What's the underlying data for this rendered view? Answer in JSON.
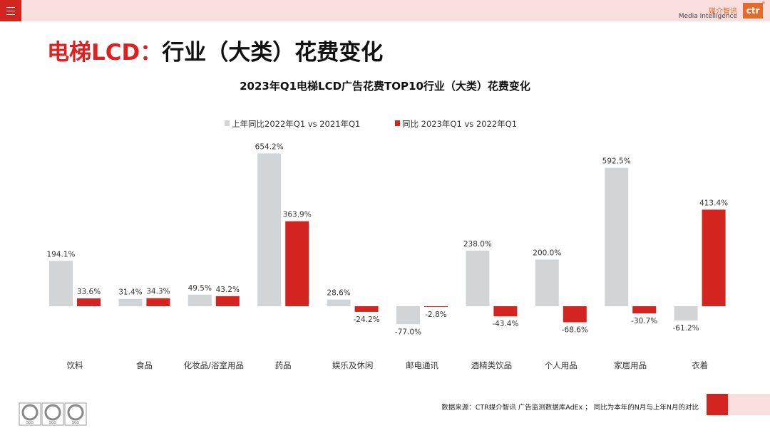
{
  "header": {
    "logo_cn": "媒介智讯",
    "logo_en": "Media Intelligence",
    "logo_mark": "ctr",
    "logo_reg": "®"
  },
  "page_title": {
    "part1": "电梯LCD：",
    "part2": "行业（大类）花费变化"
  },
  "colors": {
    "accent": "#d3241f",
    "grey_bar": "#d1d5d8",
    "red_bar": "#d3241f",
    "band": "#f8dedd"
  },
  "chart_data": {
    "type": "bar",
    "title": "2023年Q1电梯LCD广告花费TOP10行业（大类）花费变化",
    "categories": [
      "饮料",
      "食品",
      "化妆品/浴室用品",
      "药品",
      "娱乐及休闲",
      "邮电通讯",
      "酒精类饮品",
      "个人用品",
      "家居用品",
      "衣着"
    ],
    "series": [
      {
        "name": "上年同比2022年Q1 vs 2021年Q1",
        "values": [
          194.1,
          31.4,
          49.5,
          654.2,
          28.6,
          -77.0,
          238.0,
          200.0,
          592.5,
          -61.2
        ],
        "labels": [
          "194.1%",
          "31.4%",
          "49.5%",
          "654.2%",
          "28.6%",
          "-77.0%",
          "238.0%",
          "200.0%",
          "592.5%",
          "-61.2%"
        ],
        "color": "#d1d5d8"
      },
      {
        "name": "同比 2023年Q1 vs 2022年Q1",
        "values": [
          33.6,
          34.3,
          43.2,
          363.9,
          -24.2,
          -2.8,
          -43.4,
          -68.6,
          -30.7,
          413.4
        ],
        "labels": [
          "33.6%",
          "34.3%",
          "43.2%",
          "363.9%",
          "-24.2%",
          "-2.8%",
          "-43.4%",
          "-68.6%",
          "-30.7%",
          "413.4%"
        ],
        "color": "#d3241f"
      }
    ],
    "ylim": [
      -100,
      700
    ],
    "unit": "%",
    "legend": "top-center",
    "grid": false
  },
  "footer": {
    "source": "数据来源：CTR媒介智讯 广告监测数据库AdEx ；  同比为本年的N月与上年N月的对比",
    "seal_text": "SGS"
  }
}
